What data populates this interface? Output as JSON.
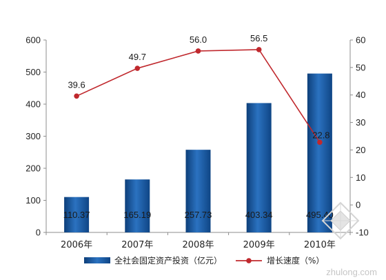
{
  "chart_data": {
    "type": "bar",
    "title": "",
    "categories": [
      "2006年",
      "2007年",
      "2008年",
      "2009年",
      "2010年"
    ],
    "ylim": [
      0,
      600
    ],
    "y_ticks": [
      "0",
      "100",
      "200",
      "300",
      "400",
      "500",
      "600"
    ],
    "y2lim": [
      -10,
      60
    ],
    "y2_ticks": [
      "-10",
      "0",
      "10",
      "20",
      "30",
      "40",
      "50",
      "60"
    ],
    "grid": false,
    "legend_position": "bottom",
    "series": [
      {
        "name": "全社会固定资产投资（亿元）",
        "type": "bar",
        "axis": "left",
        "values": [
          110.37,
          165.19,
          257.73,
          403.34,
          495.4
        ],
        "labels": [
          "110.37",
          "165.19",
          "257.73",
          "403.34",
          "495.40"
        ],
        "color": "#1f5fa8"
      },
      {
        "name": "增长速度（%）",
        "type": "line",
        "axis": "right",
        "values": [
          39.6,
          49.7,
          56.0,
          56.5,
          22.8
        ],
        "labels": [
          "39.6",
          "49.7",
          "56.0",
          "56.5",
          "22.8"
        ],
        "color": "#c0282d"
      }
    ]
  },
  "watermark": {
    "text": "zhulong.com"
  }
}
